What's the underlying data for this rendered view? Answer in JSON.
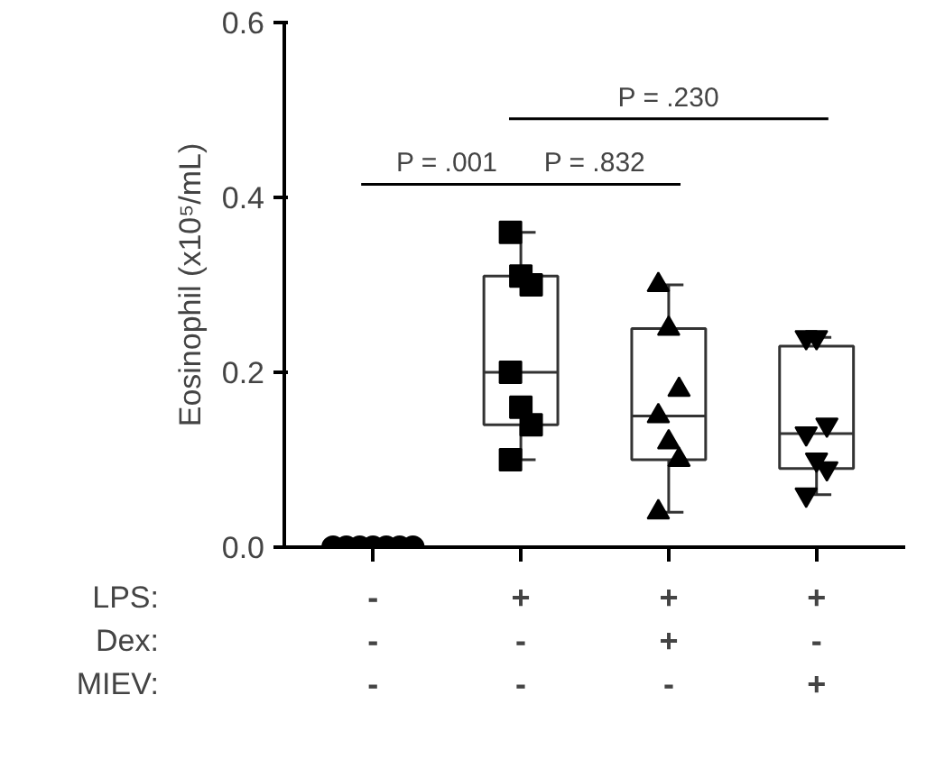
{
  "chart_data": {
    "type": "box",
    "ylabel": "Eosinophil (x10⁵/mL)",
    "categories": [
      "-\n-\n-",
      "+\n-\n-",
      "+\n+\n-",
      "+\n-\n+"
    ],
    "ylim": [
      0,
      0.6
    ],
    "yticks": [
      {
        "value": 0,
        "label": "0.0"
      },
      {
        "value": 0.2,
        "label": "0.2"
      },
      {
        "value": 0.4,
        "label": "0.4"
      },
      {
        "value": 0.6,
        "label": "0.6"
      }
    ],
    "grid": false,
    "boxes": [
      null,
      {
        "low": 0.1,
        "q1": 0.14,
        "median": 0.2,
        "q3": 0.31,
        "high": 0.36
      },
      {
        "low": 0.04,
        "q1": 0.1,
        "median": 0.15,
        "q3": 0.25,
        "high": 0.3
      },
      {
        "low": 0.06,
        "q1": 0.09,
        "median": 0.13,
        "q3": 0.23,
        "high": 0.24
      }
    ],
    "series": [
      {
        "type": "scatter",
        "marker": "circle",
        "color": "#000000",
        "x": [
          "-\n-\n-",
          "-\n-\n-",
          "-\n-\n-",
          "-\n-\n-",
          "-\n-\n-",
          "-\n-\n-",
          "-\n-\n-"
        ],
        "values": [
          0,
          0,
          0,
          0,
          0,
          0,
          0
        ]
      },
      {
        "type": "scatter",
        "marker": "square",
        "color": "#000000",
        "x": [
          "+\n-\n-",
          "+\n-\n-",
          "+\n-\n-",
          "+\n-\n-",
          "+\n-\n-",
          "+\n-\n-",
          "+\n-\n-"
        ],
        "values": [
          0.36,
          0.31,
          0.3,
          0.2,
          0.16,
          0.14,
          0.1
        ]
      },
      {
        "type": "scatter",
        "marker": "triangle",
        "color": "#000000",
        "x": [
          "+\n+\n-",
          "+\n+\n-",
          "+\n+\n-",
          "+\n+\n-",
          "+\n+\n-",
          "+\n+\n-",
          "+\n+\n-"
        ],
        "values": [
          0.3,
          0.25,
          0.18,
          0.15,
          0.12,
          0.1,
          0.04
        ]
      },
      {
        "type": "scatter",
        "color": "#000000",
        "x": [
          "+\n-\n+",
          "+\n-\n+",
          "+\n-\n+",
          "+\n-\n+",
          "+\n-\n+",
          "+\n-\n+",
          "+\n-\n+"
        ],
        "values": [
          0.24,
          0.24,
          0.14,
          0.13,
          0.1,
          0.09,
          0.06
        ]
      }
    ],
    "annotations": [
      "LPS:",
      "Dex:",
      "MIEV:",
      "P = .001",
      "P = .832",
      "P = .230"
    ]
  }
}
